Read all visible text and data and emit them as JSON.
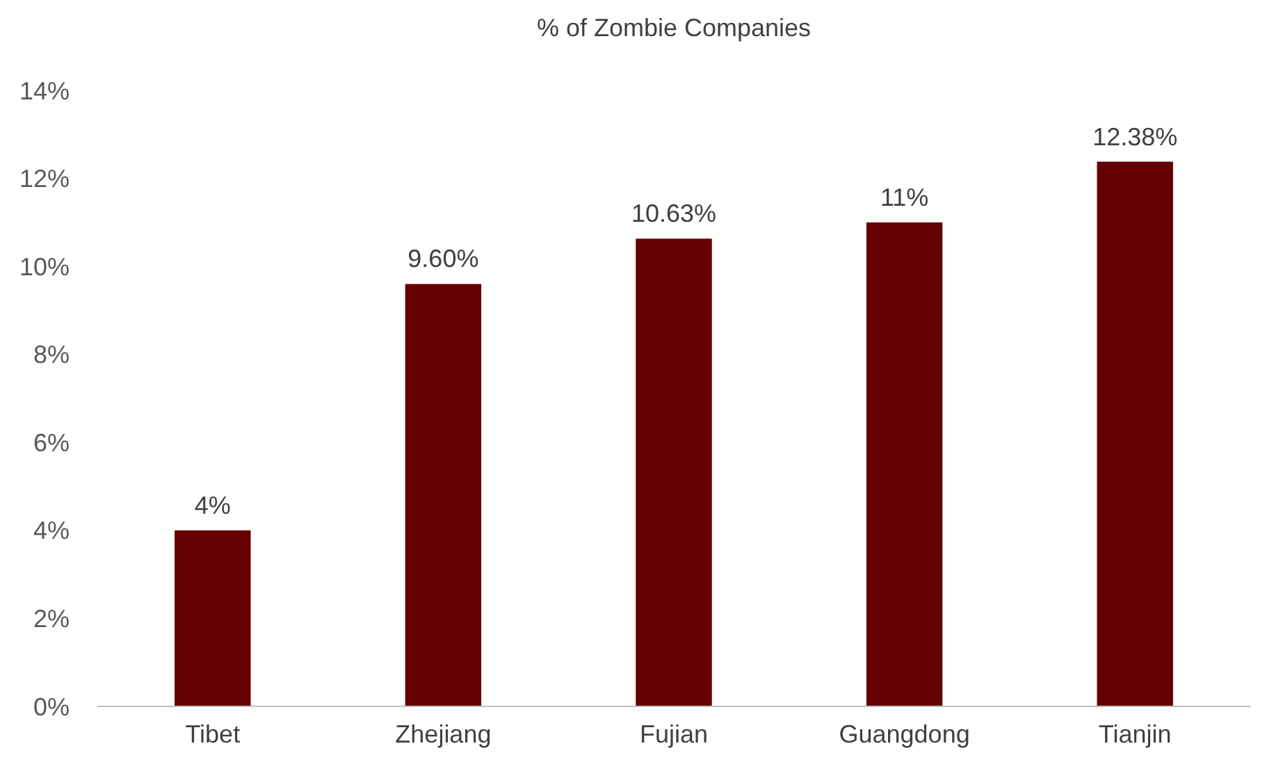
{
  "chart_data": {
    "type": "bar",
    "title": "% of Zombie Companies",
    "categories": [
      "Tibet",
      "Zhejiang",
      "Fujian",
      "Guangdong",
      "Tianjin"
    ],
    "values": [
      4,
      9.6,
      10.63,
      11,
      12.38
    ],
    "value_labels": [
      "4%",
      "9.60%",
      "10.63%",
      "11%",
      "12.38%"
    ],
    "color": "#660000",
    "ylim": [
      0,
      14
    ],
    "yticks": [
      {
        "value": 0,
        "label": "0%"
      },
      {
        "value": 2,
        "label": "2%"
      },
      {
        "value": 4,
        "label": "4%"
      },
      {
        "value": 6,
        "label": "6%"
      },
      {
        "value": 8,
        "label": "8%"
      },
      {
        "value": 10,
        "label": "10%"
      },
      {
        "value": 12,
        "label": "12%"
      },
      {
        "value": 14,
        "label": "14%"
      }
    ],
    "grid": false
  }
}
